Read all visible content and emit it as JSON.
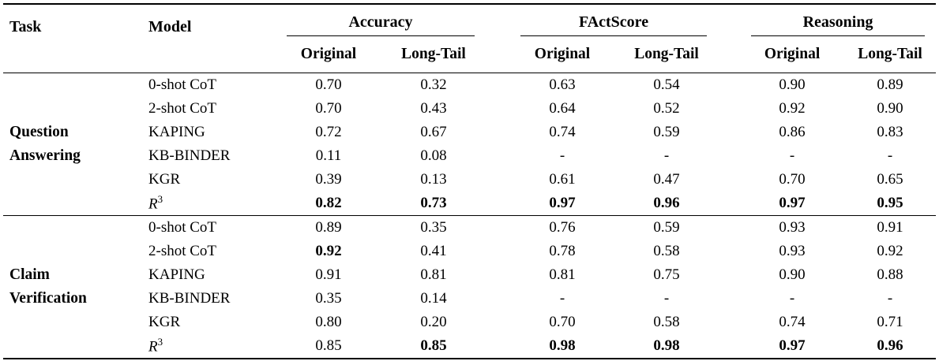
{
  "table": {
    "header": {
      "task": "Task",
      "model": "Model",
      "groups": [
        {
          "label": "Accuracy",
          "sub": [
            "Original",
            "Long-Tail"
          ]
        },
        {
          "label": "FActScore",
          "sub": [
            "Original",
            "Long-Tail"
          ]
        },
        {
          "label": "Reasoning",
          "sub": [
            "Original",
            "Long-Tail"
          ]
        }
      ]
    },
    "sections": [
      {
        "task_lines": [
          "Question",
          "Answering"
        ],
        "rows": [
          {
            "model": "0-shot CoT",
            "values": [
              "0.70",
              "0.32",
              "0.63",
              "0.54",
              "0.90",
              "0.89"
            ],
            "bold": [
              false,
              false,
              false,
              false,
              false,
              false
            ]
          },
          {
            "model": "2-shot CoT",
            "values": [
              "0.70",
              "0.43",
              "0.64",
              "0.52",
              "0.92",
              "0.90"
            ],
            "bold": [
              false,
              false,
              false,
              false,
              false,
              false
            ]
          },
          {
            "model": "KAPING",
            "values": [
              "0.72",
              "0.67",
              "0.74",
              "0.59",
              "0.86",
              "0.83"
            ],
            "bold": [
              false,
              false,
              false,
              false,
              false,
              false
            ]
          },
          {
            "model": "KB-BINDER",
            "values": [
              "0.11",
              "0.08",
              "-",
              "-",
              "-",
              "-"
            ],
            "bold": [
              false,
              false,
              false,
              false,
              false,
              false
            ]
          },
          {
            "model": "KGR",
            "values": [
              "0.39",
              "0.13",
              "0.61",
              "0.47",
              "0.70",
              "0.65"
            ],
            "bold": [
              false,
              false,
              false,
              false,
              false,
              false
            ]
          },
          {
            "model": {
              "base": "R",
              "sup": "3",
              "italic": true
            },
            "values": [
              "0.82",
              "0.73",
              "0.97",
              "0.96",
              "0.97",
              "0.95"
            ],
            "bold": [
              true,
              true,
              true,
              true,
              true,
              true
            ]
          }
        ]
      },
      {
        "task_lines": [
          "Claim",
          "Verification"
        ],
        "rows": [
          {
            "model": "0-shot CoT",
            "values": [
              "0.89",
              "0.35",
              "0.76",
              "0.59",
              "0.93",
              "0.91"
            ],
            "bold": [
              false,
              false,
              false,
              false,
              false,
              false
            ]
          },
          {
            "model": "2-shot CoT",
            "values": [
              "0.92",
              "0.41",
              "0.78",
              "0.58",
              "0.93",
              "0.92"
            ],
            "bold": [
              true,
              false,
              false,
              false,
              false,
              false
            ]
          },
          {
            "model": "KAPING",
            "values": [
              "0.91",
              "0.81",
              "0.81",
              "0.75",
              "0.90",
              "0.88"
            ],
            "bold": [
              false,
              false,
              false,
              false,
              false,
              false
            ]
          },
          {
            "model": "KB-BINDER",
            "values": [
              "0.35",
              "0.14",
              "-",
              "-",
              "-",
              "-"
            ],
            "bold": [
              false,
              false,
              false,
              false,
              false,
              false
            ]
          },
          {
            "model": "KGR",
            "values": [
              "0.80",
              "0.20",
              "0.70",
              "0.58",
              "0.74",
              "0.71"
            ],
            "bold": [
              false,
              false,
              false,
              false,
              false,
              false
            ]
          },
          {
            "model": {
              "base": "R",
              "sup": "3",
              "italic": true
            },
            "values": [
              "0.85",
              "0.85",
              "0.98",
              "0.98",
              "0.97",
              "0.96"
            ],
            "bold": [
              false,
              true,
              true,
              true,
              true,
              true
            ]
          }
        ]
      }
    ]
  }
}
